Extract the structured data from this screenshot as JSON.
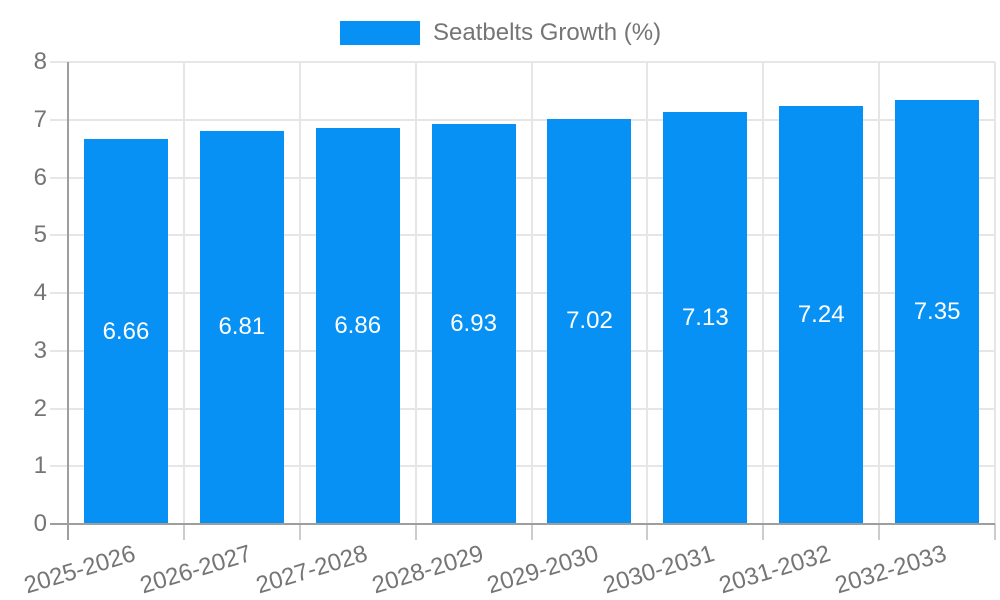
{
  "legend": {
    "label": "Seatbelts Growth (%)"
  },
  "chart_data": {
    "type": "bar",
    "title": "",
    "categories": [
      "2025-2026",
      "2026-2027",
      "2027-2028",
      "2028-2029",
      "2029-2030",
      "2030-2031",
      "2031-2032",
      "2032-2033"
    ],
    "series": [
      {
        "name": "Seatbelts Growth (%)",
        "values": [
          6.66,
          6.81,
          6.86,
          6.93,
          7.02,
          7.13,
          7.24,
          7.35
        ]
      }
    ],
    "value_labels": [
      "6.66",
      "6.81",
      "6.86",
      "6.93",
      "7.02",
      "7.13",
      "7.24",
      "7.35"
    ],
    "xlabel": "",
    "ylabel": "",
    "ylim": [
      0,
      8
    ],
    "yticks": [
      "0",
      "1",
      "2",
      "3",
      "4",
      "5",
      "6",
      "7",
      "8"
    ],
    "grid": true,
    "legend_position": "top-center",
    "colors": {
      "bar": "#0791f4",
      "axis_text": "#757575",
      "bar_label_text": "#ffffff",
      "gridline": "#e6e6e6",
      "axis_line": "#9e9e9e",
      "tick": "#cccccc",
      "background": "#ffffff"
    }
  }
}
